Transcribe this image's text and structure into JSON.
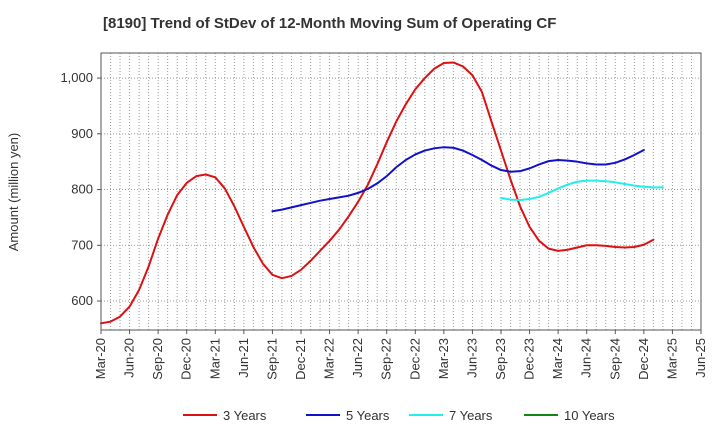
{
  "chart_data": {
    "type": "line",
    "title": "[8190]  Trend of StDev of 12-Month Moving Sum of Operating CF",
    "xlabel": "",
    "ylabel": "Amount (million yen)",
    "ylim": [
      548,
      1045
    ],
    "yticks": [
      600,
      700,
      800,
      900,
      1000
    ],
    "ytick_labels": [
      "600",
      "700",
      "800",
      "900",
      "1,000"
    ],
    "grid": true,
    "legend_position": "bottom",
    "x_tick_labels": [
      "Mar-20",
      "Jun-20",
      "Sep-20",
      "Dec-20",
      "Mar-21",
      "Jun-21",
      "Sep-21",
      "Dec-21",
      "Mar-22",
      "Jun-22",
      "Sep-22",
      "Dec-22",
      "Mar-23",
      "Jun-23",
      "Sep-23",
      "Dec-23",
      "Mar-24",
      "Jun-24",
      "Sep-24",
      "Dec-24",
      "Mar-25",
      "Jun-25"
    ],
    "x_count": 64,
    "series": [
      {
        "name": "3 Years",
        "color": "#dd1111",
        "start_index": 0,
        "values": [
          560,
          563,
          572,
          590,
          620,
          662,
          712,
          755,
          790,
          812,
          824,
          827,
          822,
          802,
          770,
          733,
          697,
          667,
          647,
          641,
          645,
          656,
          672,
          690,
          708,
          728,
          752,
          778,
          808,
          845,
          885,
          922,
          953,
          980,
          1000,
          1017,
          1027,
          1028,
          1021,
          1005,
          975,
          922,
          870,
          818,
          770,
          733,
          708,
          694,
          690,
          692,
          696,
          700,
          700,
          699,
          697,
          696,
          697,
          701,
          710
        ]
      },
      {
        "name": "5 Years",
        "color": "#1111cc",
        "start_index": 18,
        "values": [
          761,
          764,
          768,
          772,
          776,
          780,
          783,
          786,
          789,
          794,
          801,
          811,
          824,
          840,
          853,
          863,
          870,
          874,
          876,
          875,
          870,
          862,
          853,
          843,
          835,
          832,
          833,
          838,
          845,
          851,
          853,
          852,
          850,
          847,
          845,
          845,
          848,
          854,
          862,
          871
        ]
      },
      {
        "name": "7 Years",
        "color": "#22eeee",
        "start_index": 42,
        "values": [
          785,
          782,
          781,
          783,
          787,
          794,
          802,
          809,
          814,
          816,
          816,
          815,
          813,
          810,
          807,
          805,
          804,
          804
        ]
      },
      {
        "name": "10 Years",
        "color": "#118811",
        "start_index": 0,
        "values": []
      }
    ]
  }
}
